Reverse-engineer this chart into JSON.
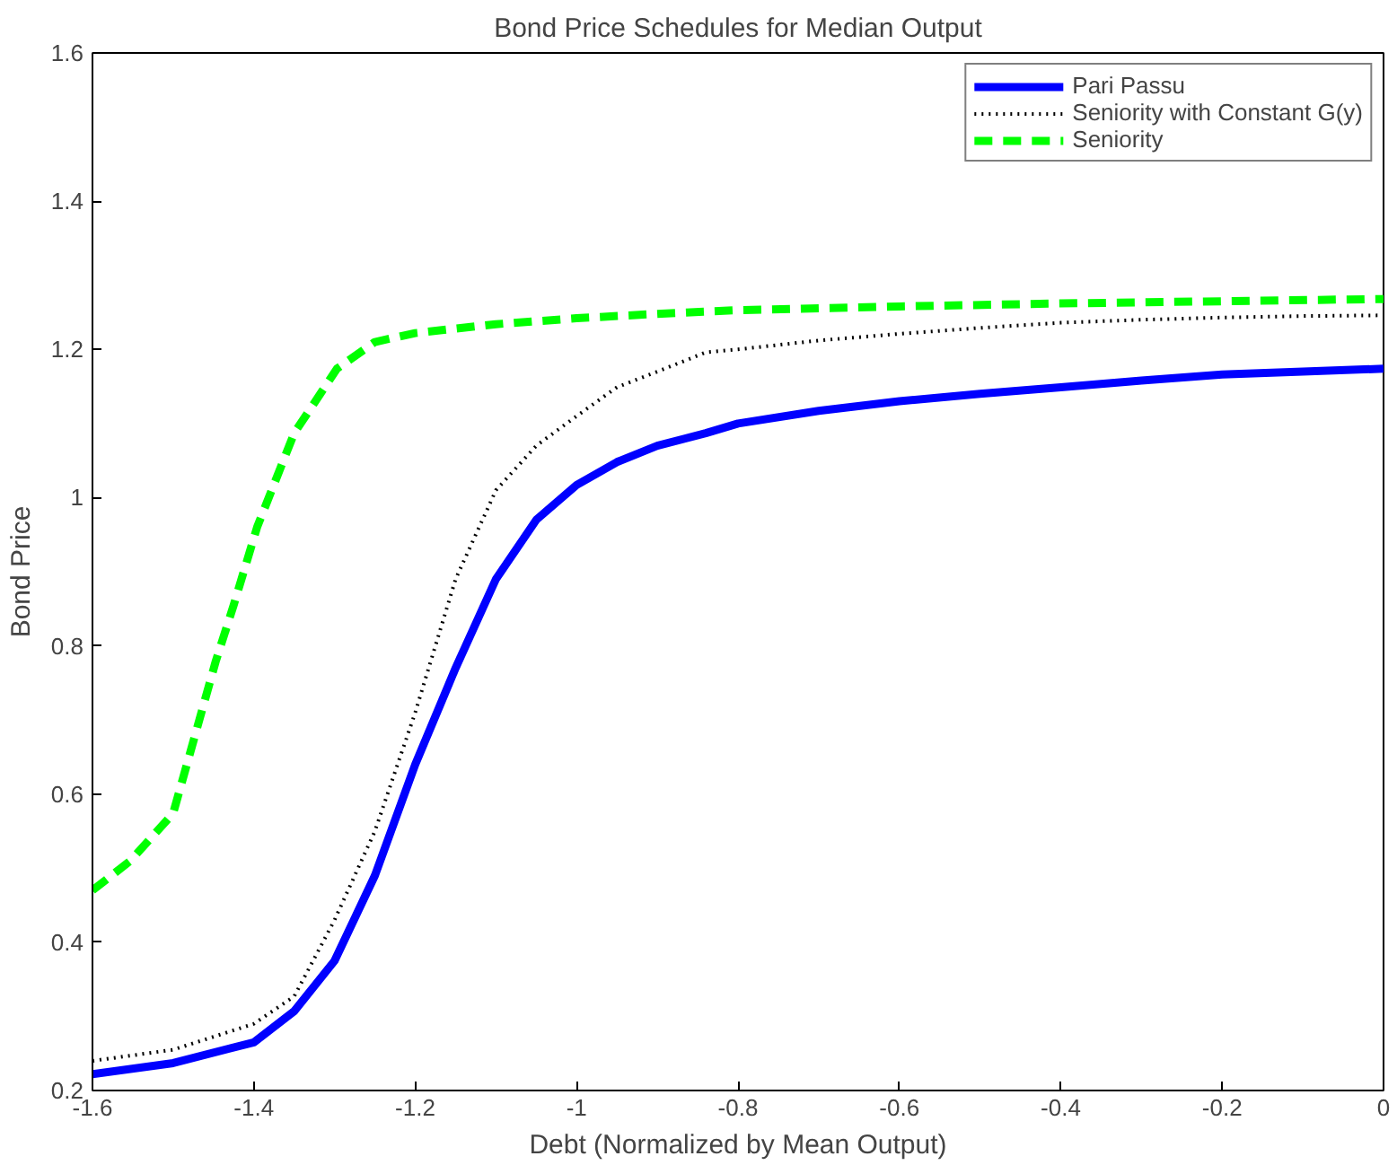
{
  "chart_data": {
    "type": "line",
    "title": "Bond Price Schedules for Median Output",
    "xlabel": "Debt (Normalized by Mean Output)",
    "ylabel": "Bond Price",
    "xlim": [
      -1.6,
      0
    ],
    "ylim": [
      0.2,
      1.6
    ],
    "xticks": [
      -1.6,
      -1.4,
      -1.2,
      -1,
      -0.8,
      -0.6,
      -0.4,
      -0.2,
      0
    ],
    "yticks": [
      0.2,
      0.4,
      0.6,
      0.8,
      1,
      1.2,
      1.4,
      1.6
    ],
    "grid": false,
    "legend": "top right",
    "marker": "none",
    "series": [
      {
        "name": "Pari Passu",
        "color": "#0000ff",
        "line_style": "solid",
        "x": [
          -1.6,
          -1.5,
          -1.4,
          -1.35,
          -1.3,
          -1.25,
          -1.2,
          -1.15,
          -1.1,
          -1.05,
          -1.0,
          -0.95,
          -0.9,
          -0.84,
          -0.8,
          -0.7,
          -0.6,
          -0.5,
          -0.4,
          -0.3,
          -0.2,
          -0.1,
          0
        ],
        "values": [
          0.222,
          0.237,
          0.265,
          0.307,
          0.375,
          0.49,
          0.64,
          0.77,
          0.89,
          0.97,
          1.017,
          1.048,
          1.07,
          1.087,
          1.1,
          1.117,
          1.13,
          1.14,
          1.149,
          1.158,
          1.166,
          1.17,
          1.174
        ]
      },
      {
        "name": "Seniority with Constant G(y)",
        "color": "#000000",
        "line_style": "dotted",
        "x": [
          -1.6,
          -1.5,
          -1.4,
          -1.35,
          -1.3,
          -1.25,
          -1.2,
          -1.15,
          -1.1,
          -1.05,
          -1.0,
          -0.95,
          -0.9,
          -0.84,
          -0.8,
          -0.7,
          -0.6,
          -0.5,
          -0.4,
          -0.3,
          -0.2,
          -0.1,
          0
        ],
        "values": [
          0.24,
          0.255,
          0.29,
          0.327,
          0.43,
          0.55,
          0.71,
          0.89,
          1.01,
          1.07,
          1.11,
          1.149,
          1.17,
          1.196,
          1.2,
          1.212,
          1.221,
          1.229,
          1.236,
          1.24,
          1.243,
          1.245,
          1.246
        ]
      },
      {
        "name": "Seniority",
        "color": "#00ff00",
        "line_style": "dashed",
        "x": [
          -1.6,
          -1.553,
          -1.5,
          -1.447,
          -1.425,
          -1.396,
          -1.35,
          -1.297,
          -1.25,
          -1.2,
          -1.1,
          -1.0,
          -0.9,
          -0.8,
          -0.6,
          -0.4,
          -0.2,
          0
        ],
        "values": [
          0.47,
          0.51,
          0.574,
          0.78,
          0.855,
          0.96,
          1.087,
          1.174,
          1.21,
          1.222,
          1.234,
          1.242,
          1.248,
          1.253,
          1.258,
          1.262,
          1.265,
          1.268
        ]
      }
    ]
  }
}
